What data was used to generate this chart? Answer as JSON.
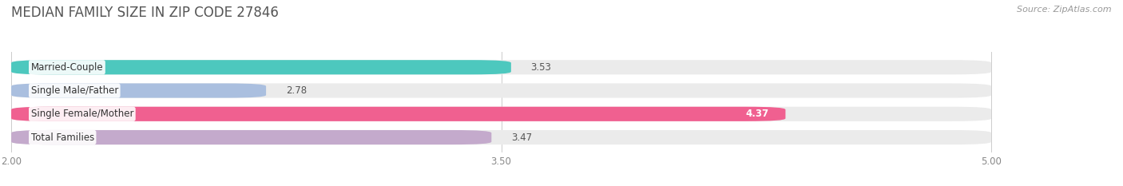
{
  "title": "MEDIAN FAMILY SIZE IN ZIP CODE 27846",
  "source": "Source: ZipAtlas.com",
  "categories": [
    "Married-Couple",
    "Single Male/Father",
    "Single Female/Mother",
    "Total Families"
  ],
  "values": [
    3.53,
    2.78,
    4.37,
    3.47
  ],
  "bar_colors": [
    "#4DC8BE",
    "#AABFDF",
    "#F06090",
    "#C4AACC"
  ],
  "track_color": "#EBEBEB",
  "xlim_min": 2.0,
  "xlim_max": 5.0,
  "xticks": [
    2.0,
    3.5,
    5.0
  ],
  "xticklabels": [
    "2.00",
    "3.50",
    "5.00"
  ],
  "label_fontsize": 8.5,
  "title_fontsize": 12,
  "value_fontsize": 8.5,
  "background_color": "#FFFFFF",
  "bar_height": 0.62,
  "rounding_size": 0.12
}
